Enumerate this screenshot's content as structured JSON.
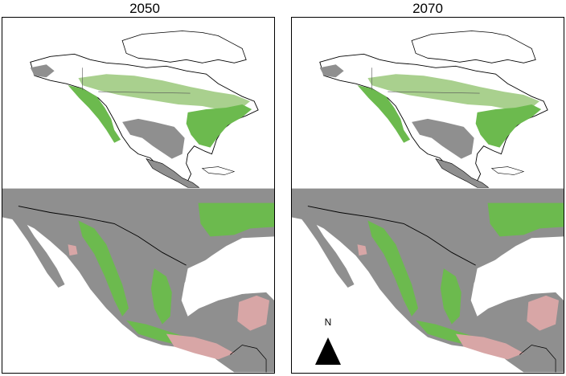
{
  "panels": {
    "left_title": "2050",
    "right_title": "2070"
  },
  "north_arrow": {
    "label": "N"
  },
  "colors": {
    "land_background": "#8f8f8f",
    "suitable_light": "#a9d08e",
    "suitable_dark": "#6cba4e",
    "loss": "#d8a6a6",
    "water": "#ffffff",
    "border": "#000000"
  }
}
